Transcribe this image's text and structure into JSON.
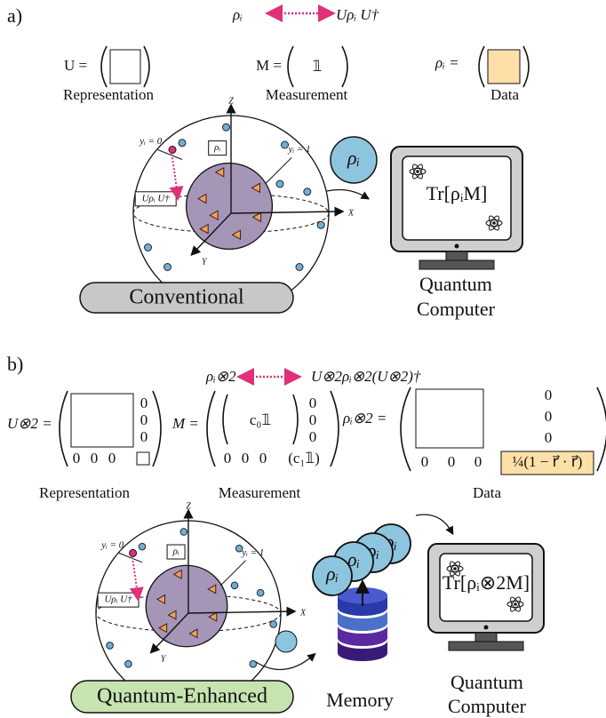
{
  "panel_a": {
    "label": "a)",
    "mapping": {
      "from": "ρᵢ",
      "to": "Uρᵢ U†"
    },
    "representation": {
      "lhs": "U =",
      "caption": "Representation"
    },
    "measurement": {
      "lhs": "M =",
      "entry": "𝟙",
      "caption": "Measurement"
    },
    "data": {
      "lhs": "ρᵢ =",
      "caption": "Data"
    },
    "sphere": {
      "z": "Z",
      "x": "X",
      "y": "Y",
      "class0": "yᵢ = 0",
      "class1": "yᵢ = 1",
      "state": "ρᵢ",
      "rotated": "Uρᵢ U†"
    },
    "token": "ρᵢ",
    "computer": {
      "screen": "Tr[ρᵢM]",
      "line1": "Quantum",
      "line2": "Computer"
    },
    "mode": "Conventional"
  },
  "panel_b": {
    "label": "b)",
    "mapping": {
      "from": "ρᵢ⊗2",
      "to": "U⊗2ρᵢ⊗2(U⊗2)†"
    },
    "representation": {
      "lhs": "U⊗2 =",
      "zeros": [
        "0",
        "0",
        "0",
        "0",
        "0",
        "0"
      ],
      "caption": "Representation"
    },
    "measurement": {
      "lhs": "M =",
      "block": "c₀𝟙",
      "zeros": [
        "0",
        "0",
        "0",
        "0",
        "0",
        "0"
      ],
      "corner": "(c₁𝟙)",
      "caption": "Measurement"
    },
    "data": {
      "lhs": "ρᵢ⊗2 =",
      "zeros": [
        "0",
        "0",
        "0",
        "0",
        "0",
        "0"
      ],
      "corner": "¼(1 − r⃗ · r⃗)",
      "caption": "Data"
    },
    "sphere": {
      "z": "Z",
      "x": "X",
      "y": "Y",
      "class0": "yᵢ = 0",
      "class1": "yᵢ = 1",
      "state": "ρᵢ",
      "rotated": "Uρᵢ U†"
    },
    "memory_states": [
      "ρᵢ",
      "ρᵢ",
      "ρᵢ",
      "ρᵢ"
    ],
    "memory": "Memory",
    "computer": {
      "screen": "Tr[ρᵢ⊗2M]",
      "line1": "Quantum",
      "line2": "Computer"
    },
    "mode": "Quantum-Enhanced"
  }
}
